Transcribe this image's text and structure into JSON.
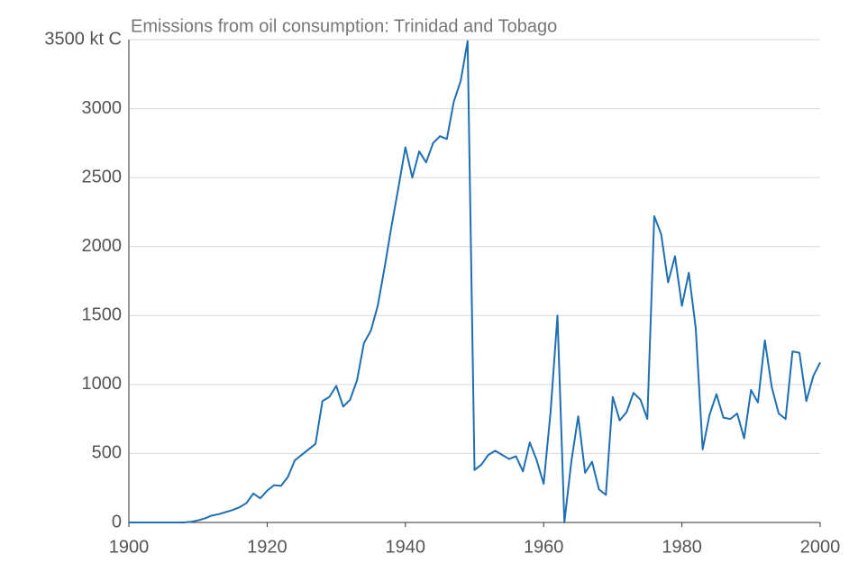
{
  "chart_data": {
    "type": "line",
    "title": "Emissions from oil consumption: Trinidad and Tobago",
    "x": [
      1900,
      1901,
      1902,
      1903,
      1904,
      1905,
      1906,
      1907,
      1908,
      1909,
      1910,
      1911,
      1912,
      1913,
      1914,
      1915,
      1916,
      1917,
      1918,
      1919,
      1920,
      1921,
      1922,
      1923,
      1924,
      1925,
      1926,
      1927,
      1928,
      1929,
      1930,
      1931,
      1932,
      1933,
      1934,
      1935,
      1936,
      1937,
      1938,
      1939,
      1940,
      1941,
      1942,
      1943,
      1944,
      1945,
      1946,
      1947,
      1948,
      1949,
      1950,
      1951,
      1952,
      1953,
      1954,
      1955,
      1956,
      1957,
      1958,
      1959,
      1960,
      1961,
      1962,
      1963,
      1964,
      1965,
      1966,
      1967,
      1968,
      1969,
      1970,
      1971,
      1972,
      1973,
      1974,
      1975,
      1976,
      1977,
      1978,
      1979,
      1980,
      1981,
      1982,
      1983,
      1984,
      1985,
      1986,
      1987,
      1988,
      1989,
      1990,
      1991,
      1992,
      1993,
      1994,
      1995,
      1996,
      1997,
      1998,
      1999,
      2000
    ],
    "series": [
      {
        "name": "Emissions",
        "color": "#1f6fb2",
        "values": [
          0,
          0,
          0,
          0,
          0,
          0,
          0,
          0,
          0,
          5,
          15,
          30,
          50,
          60,
          75,
          90,
          110,
          140,
          210,
          175,
          230,
          270,
          265,
          330,
          450,
          490,
          530,
          570,
          880,
          910,
          990,
          840,
          890,
          1030,
          1300,
          1390,
          1570,
          1850,
          2150,
          2430,
          2720,
          2500,
          2690,
          2610,
          2750,
          2800,
          2780,
          3050,
          3200,
          3490,
          380,
          420,
          490,
          520,
          490,
          460,
          480,
          370,
          580,
          450,
          280,
          800,
          1500,
          0,
          440,
          770,
          360,
          440,
          240,
          200,
          910,
          740,
          800,
          940,
          890,
          750,
          2220,
          2090,
          1740,
          1930,
          1570,
          1810,
          1410,
          530,
          780,
          930,
          760,
          750,
          790,
          610,
          960,
          870,
          1320,
          980,
          790,
          750,
          1240,
          1230,
          880,
          1060,
          1160
        ]
      }
    ],
    "xlim": [
      1900,
      2000
    ],
    "xticks": [
      1900,
      1920,
      1940,
      1960,
      1980,
      2000
    ],
    "ylim": [
      0,
      3500
    ],
    "yticks": [
      0,
      500,
      1000,
      1500,
      2000,
      2500,
      3000,
      {
        "value": 3500,
        "label": "3500 kt C"
      }
    ],
    "grid": true
  }
}
